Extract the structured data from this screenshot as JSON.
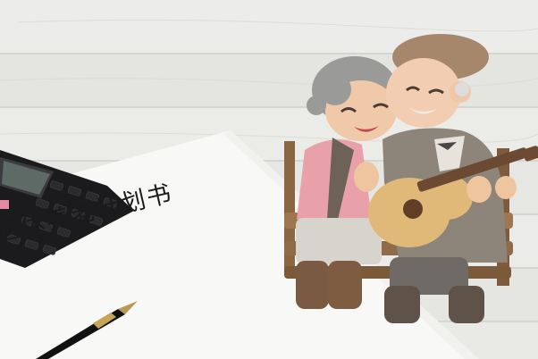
{
  "document": {
    "title": "退休养老计划书"
  },
  "calculator": {
    "keys": [
      [
        "MRC",
        "M-",
        "M+",
        "÷"
      ],
      [
        "7",
        "8",
        "9",
        "×"
      ],
      [
        "4",
        "5",
        "6",
        "−"
      ],
      [
        "1",
        "2",
        "3",
        "+"
      ],
      [
        "0",
        "00",
        ".",
        "="
      ]
    ]
  },
  "colors": {
    "table": "#e9e9e7",
    "paper": "#f7f7f6",
    "calculator": "#1d1d1f",
    "grandma_top": "#e8a1a8",
    "grandpa_coat": "#8d8579",
    "guitar": "#e0b978"
  }
}
